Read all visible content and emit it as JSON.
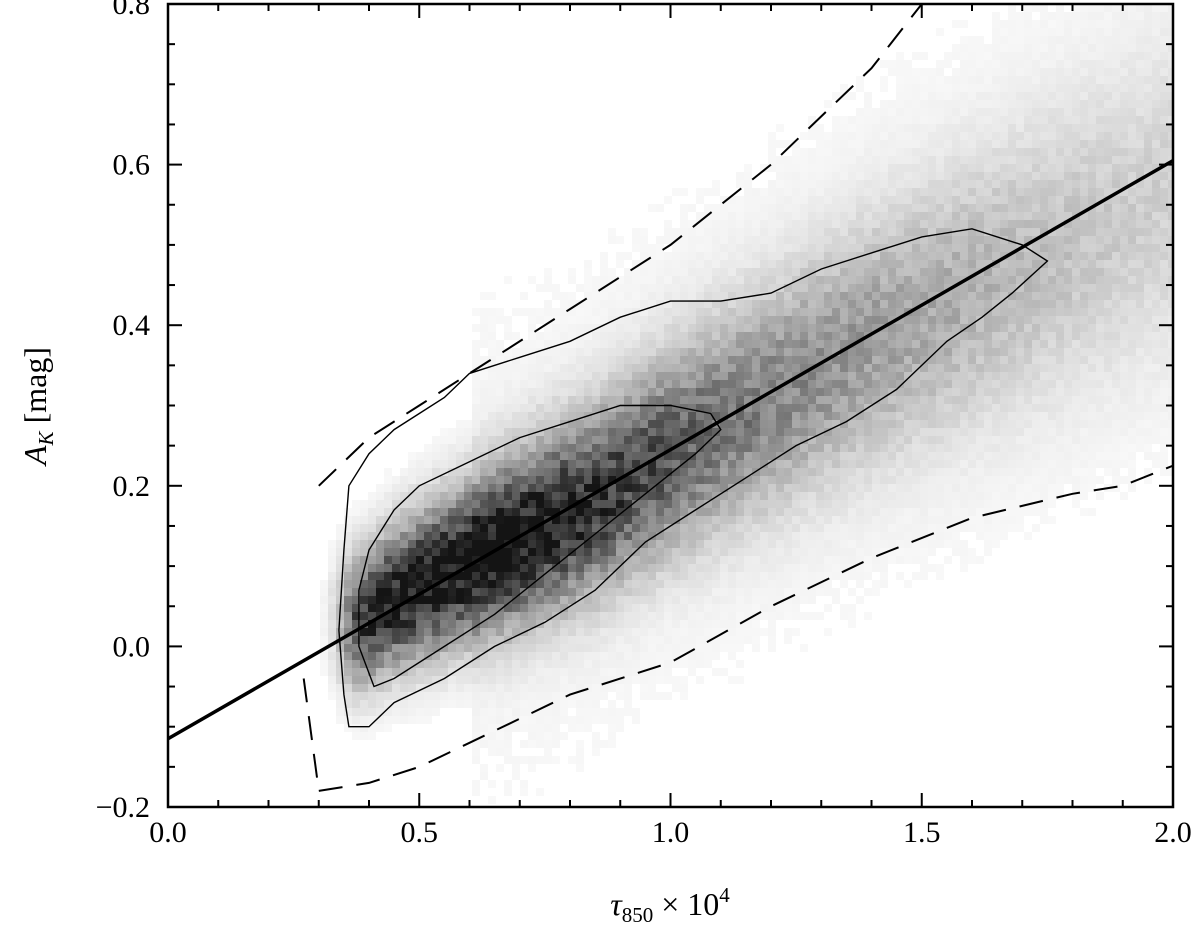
{
  "chart_data": {
    "type": "scatter",
    "subtype": "2d-density-histogram-with-contours",
    "title": "",
    "xlabel": {
      "base": "τ",
      "sub": "850",
      "suffix": " × 10",
      "sup": "4"
    },
    "ylabel": {
      "base": "A",
      "sub": "K",
      "suffix": " [mag]"
    },
    "xlim": [
      0.0,
      2.0
    ],
    "ylim": [
      -0.2,
      0.8
    ],
    "x_ticks": [
      {
        "value": 0.0,
        "label": "0.0"
      },
      {
        "value": 0.5,
        "label": "0.5"
      },
      {
        "value": 1.0,
        "label": "1.0"
      },
      {
        "value": 1.5,
        "label": "1.5"
      },
      {
        "value": 2.0,
        "label": "2.0"
      }
    ],
    "y_ticks": [
      {
        "value": -0.2,
        "label": "−0.2"
      },
      {
        "value": 0.0,
        "label": "0.0"
      },
      {
        "value": 0.2,
        "label": "0.2"
      },
      {
        "value": 0.4,
        "label": "0.4"
      },
      {
        "value": 0.6,
        "label": "0.6"
      },
      {
        "value": 0.8,
        "label": "0.8"
      }
    ],
    "grid": false,
    "legend": "none",
    "colormap": "greyscale (white = low density, black = high density)",
    "fit_line": {
      "style": "solid",
      "intercept": -0.115,
      "slope": 0.36
    },
    "dashed_boundary": {
      "style": "dashed",
      "upper": [
        [
          0.3,
          0.2
        ],
        [
          0.4,
          0.26
        ],
        [
          0.5,
          0.3
        ],
        [
          0.6,
          0.34
        ],
        [
          0.8,
          0.42
        ],
        [
          1.0,
          0.5
        ],
        [
          1.2,
          0.6
        ],
        [
          1.4,
          0.72
        ],
        [
          1.5,
          0.8
        ]
      ],
      "lower": [
        [
          0.3,
          -0.18
        ],
        [
          0.4,
          -0.17
        ],
        [
          0.5,
          -0.15
        ],
        [
          0.6,
          -0.12
        ],
        [
          0.8,
          -0.06
        ],
        [
          1.0,
          -0.02
        ],
        [
          1.2,
          0.05
        ],
        [
          1.4,
          0.11
        ],
        [
          1.6,
          0.16
        ],
        [
          1.8,
          0.19
        ],
        [
          1.9,
          0.2
        ],
        [
          2.0,
          0.225
        ]
      ],
      "left_edge": [
        [
          0.27,
          -0.04
        ],
        [
          0.3,
          -0.18
        ]
      ]
    },
    "density_ridge": [
      [
        0.38,
        0.03
      ],
      [
        0.45,
        0.06
      ],
      [
        0.55,
        0.09
      ],
      [
        0.65,
        0.12
      ],
      [
        0.75,
        0.15
      ],
      [
        0.85,
        0.18
      ],
      [
        1.0,
        0.24
      ],
      [
        1.2,
        0.31
      ],
      [
        1.4,
        0.38
      ],
      [
        1.6,
        0.44
      ],
      [
        1.8,
        0.5
      ],
      [
        2.0,
        0.56
      ]
    ],
    "contours": [
      {
        "level": "outer",
        "points": [
          [
            0.36,
            -0.1
          ],
          [
            0.4,
            -0.1
          ],
          [
            0.45,
            -0.07
          ],
          [
            0.55,
            -0.04
          ],
          [
            0.65,
            0.0
          ],
          [
            0.75,
            0.03
          ],
          [
            0.85,
            0.07
          ],
          [
            0.95,
            0.13
          ],
          [
            1.05,
            0.17
          ],
          [
            1.15,
            0.21
          ],
          [
            1.25,
            0.25
          ],
          [
            1.35,
            0.28
          ],
          [
            1.45,
            0.32
          ],
          [
            1.55,
            0.38
          ],
          [
            1.62,
            0.41
          ],
          [
            1.68,
            0.44
          ],
          [
            1.75,
            0.48
          ],
          [
            1.7,
            0.5
          ],
          [
            1.6,
            0.52
          ],
          [
            1.5,
            0.51
          ],
          [
            1.4,
            0.49
          ],
          [
            1.3,
            0.47
          ],
          [
            1.2,
            0.44
          ],
          [
            1.1,
            0.43
          ],
          [
            1.0,
            0.43
          ],
          [
            0.9,
            0.41
          ],
          [
            0.8,
            0.38
          ],
          [
            0.7,
            0.36
          ],
          [
            0.6,
            0.34
          ],
          [
            0.55,
            0.31
          ],
          [
            0.5,
            0.29
          ],
          [
            0.45,
            0.27
          ],
          [
            0.4,
            0.24
          ],
          [
            0.36,
            0.2
          ],
          [
            0.35,
            0.12
          ],
          [
            0.34,
            0.02
          ],
          [
            0.35,
            -0.06
          ]
        ]
      },
      {
        "level": "inner",
        "points": [
          [
            0.41,
            -0.05
          ],
          [
            0.45,
            -0.04
          ],
          [
            0.55,
            0.0
          ],
          [
            0.65,
            0.04
          ],
          [
            0.75,
            0.09
          ],
          [
            0.85,
            0.14
          ],
          [
            0.95,
            0.19
          ],
          [
            1.05,
            0.24
          ],
          [
            1.1,
            0.27
          ],
          [
            1.08,
            0.29
          ],
          [
            1.0,
            0.3
          ],
          [
            0.9,
            0.3
          ],
          [
            0.8,
            0.28
          ],
          [
            0.7,
            0.26
          ],
          [
            0.6,
            0.23
          ],
          [
            0.5,
            0.2
          ],
          [
            0.45,
            0.17
          ],
          [
            0.4,
            0.12
          ],
          [
            0.38,
            0.07
          ],
          [
            0.38,
            0.0
          ]
        ]
      }
    ]
  }
}
